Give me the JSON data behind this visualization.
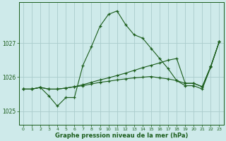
{
  "title": "Graphe pression niveau de la mer (hPa)",
  "bg_color": "#ceeaea",
  "grid_color": "#aacccc",
  "line_color": "#1a5c1a",
  "x_labels": [
    "0",
    "1",
    "2",
    "3",
    "4",
    "5",
    "6",
    "7",
    "8",
    "9",
    "10",
    "11",
    "12",
    "13",
    "14",
    "15",
    "16",
    "17",
    "18",
    "19",
    "20",
    "21",
    "22",
    "23"
  ],
  "ylim": [
    1024.6,
    1028.2
  ],
  "yticks": [
    1025,
    1026,
    1027
  ],
  "series_spike": [
    1025.65,
    1025.65,
    1025.7,
    1025.45,
    1025.15,
    1025.4,
    1025.4,
    1026.35,
    1026.9,
    1027.5,
    1027.85,
    1027.95,
    1027.55,
    1027.25,
    1027.15,
    1026.85,
    1026.55,
    1026.25,
    1025.9,
    1025.75,
    1025.75,
    1025.65,
    1026.3,
    1027.05
  ],
  "series_diagonal": [
    1025.65,
    1025.65,
    1025.7,
    1025.65,
    1025.65,
    1025.68,
    1025.72,
    1025.78,
    1025.85,
    1025.92,
    1025.98,
    1026.05,
    1026.12,
    1026.2,
    1026.28,
    1026.35,
    1026.42,
    1026.5,
    1026.55,
    1025.82,
    1025.82,
    1025.72,
    1026.32,
    1027.05
  ],
  "series_flat": [
    1025.65,
    1025.65,
    1025.7,
    1025.65,
    1025.65,
    1025.68,
    1025.72,
    1025.75,
    1025.8,
    1025.85,
    1025.88,
    1025.92,
    1025.95,
    1025.98,
    1026.0,
    1026.02,
    1025.98,
    1025.95,
    1025.9,
    1025.82,
    1025.82,
    1025.72,
    1026.32,
    1027.05
  ]
}
